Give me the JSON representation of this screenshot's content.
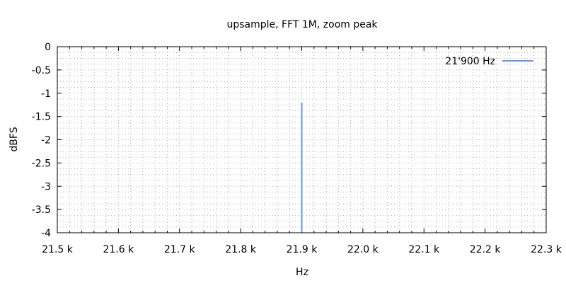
{
  "chart_data": {
    "type": "line",
    "title": "upsample, FFT 1M, zoom peak",
    "xlabel": "Hz",
    "ylabel": "dBFS",
    "xlim": [
      21500,
      22300
    ],
    "ylim": [
      -4,
      0
    ],
    "x_ticks": [
      {
        "value": 21500,
        "label": "21.5 k"
      },
      {
        "value": 21600,
        "label": "21.6 k"
      },
      {
        "value": 21700,
        "label": "21.7 k"
      },
      {
        "value": 21800,
        "label": "21.8 k"
      },
      {
        "value": 21900,
        "label": "21.9 k"
      },
      {
        "value": 22000,
        "label": "22.0 k"
      },
      {
        "value": 22100,
        "label": "22.1 k"
      },
      {
        "value": 22200,
        "label": "22.2 k"
      },
      {
        "value": 22300,
        "label": "22.3 k"
      }
    ],
    "y_ticks": [
      {
        "value": 0,
        "label": "0"
      },
      {
        "value": -0.5,
        "label": "-0.5"
      },
      {
        "value": -1,
        "label": "-1"
      },
      {
        "value": -1.5,
        "label": "-1.5"
      },
      {
        "value": -2,
        "label": "-2"
      },
      {
        "value": -2.5,
        "label": "-2.5"
      },
      {
        "value": -3,
        "label": "-3"
      },
      {
        "value": -3.5,
        "label": "-3.5"
      },
      {
        "value": -4,
        "label": "-4"
      }
    ],
    "grid": true,
    "legend_position": "top-right",
    "series": [
      {
        "name": "21'900 Hz",
        "color": "#6495ed",
        "points": [
          {
            "x": 21900,
            "y": -4
          },
          {
            "x": 21900,
            "y": -1.2
          }
        ]
      }
    ]
  }
}
